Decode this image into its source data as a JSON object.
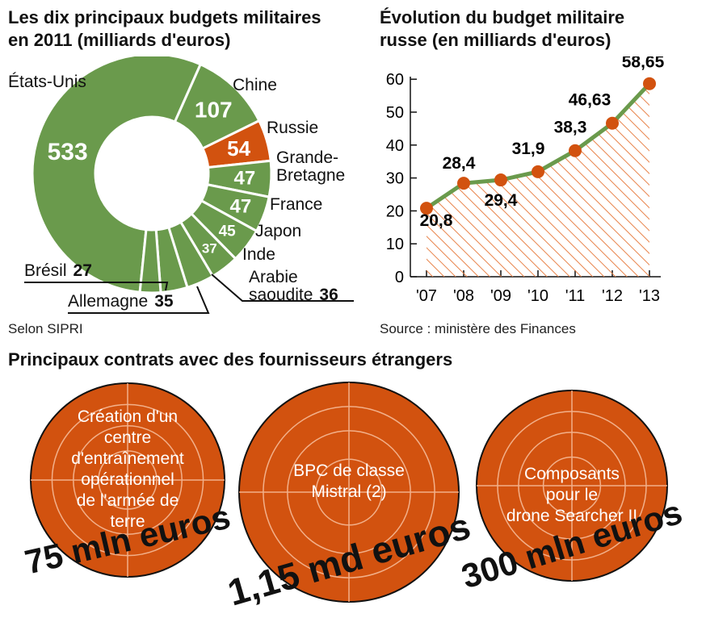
{
  "pie_title_line1": "Les dix principaux budgets militaires",
  "pie_title_line2": "en 2011 (milliards d'euros)",
  "line_title_line1": "Évolution du budget militaire",
  "line_title_line2": "russe (en milliards d'euros)",
  "pie_source": "Selon SIPRI",
  "line_source": "Source : ministère des Finances",
  "contracts_title": "Principaux contrats avec des fournisseurs étrangers",
  "colors": {
    "green": "#6a9a4c",
    "orange": "#d2520f",
    "hatch": "#e8834a"
  },
  "chart_data": [
    {
      "type": "pie",
      "subtype": "donut",
      "title": "Les dix principaux budgets militaires en 2011 (milliards d'euros)",
      "slices": [
        {
          "label": "États-Unis",
          "value": 533,
          "color": "#6a9a4c"
        },
        {
          "label": "Chine",
          "value": 107,
          "color": "#6a9a4c"
        },
        {
          "label": "Russie",
          "value": 54,
          "color": "#d2520f"
        },
        {
          "label": "Grande-Bretagne",
          "value": 47,
          "color": "#6a9a4c"
        },
        {
          "label": "France",
          "value": 47,
          "color": "#6a9a4c"
        },
        {
          "label": "Japon",
          "value": 45,
          "color": "#6a9a4c"
        },
        {
          "label": "Inde",
          "value": 37,
          "color": "#6a9a4c"
        },
        {
          "label": "Arabie saoudite",
          "value": 36,
          "color": "#6a9a4c"
        },
        {
          "label": "Allemagne",
          "value": 35,
          "color": "#6a9a4c"
        },
        {
          "label": "Brésil",
          "value": 27,
          "color": "#6a9a4c"
        }
      ]
    },
    {
      "type": "line",
      "title": "Évolution du budget militaire russe (en milliards d'euros)",
      "x": [
        "'07",
        "'08",
        "'09",
        "'10",
        "'11",
        "'12",
        "'13"
      ],
      "values": [
        20.8,
        28.4,
        29.4,
        31.9,
        38.3,
        46.63,
        58.65
      ],
      "value_labels": [
        "20,8",
        "28,4",
        "29,4",
        "31,9",
        "38,3",
        "46,63",
        "58,65"
      ],
      "y_ticks": [
        0,
        10,
        20,
        30,
        40,
        50,
        60
      ],
      "ylim": [
        0,
        60
      ],
      "grid": false
    }
  ],
  "contracts": [
    {
      "description": "Création d'un centre d'entraînement opérationnel de l'armée de terre",
      "lines": [
        "Création d'un",
        "centre",
        "d'entraînement",
        "opérationnel",
        "de l'armée de",
        "terre"
      ],
      "amount": "75 mln euros"
    },
    {
      "description": "BPC de classe Mistral (2)",
      "lines": [
        "BPC de classe",
        "Mistral (2)"
      ],
      "amount": "1,15 md euros"
    },
    {
      "description": "Composants pour le drone Searcher II",
      "lines": [
        "Composants",
        "pour le",
        "drone Searcher II"
      ],
      "amount": "300 mln euros"
    }
  ]
}
